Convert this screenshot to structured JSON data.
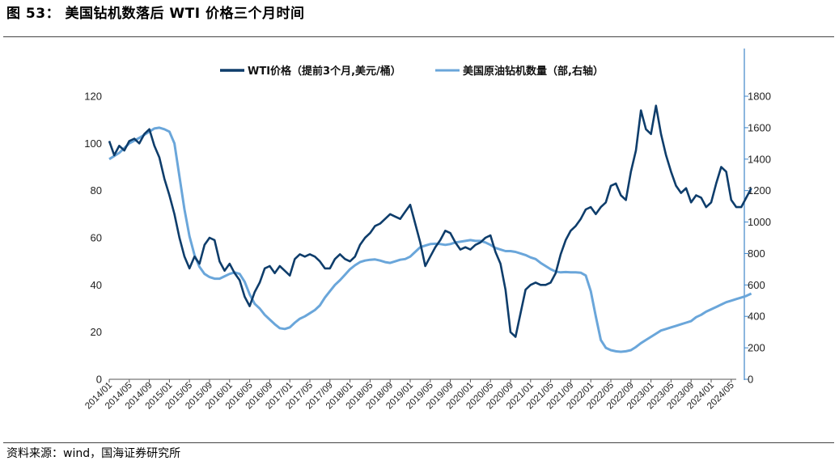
{
  "header": {
    "title": "图 53： 美国钻机数落后 WTI 价格三个月时间"
  },
  "footer": {
    "source": "资料来源：wind，国海证券研究所"
  },
  "colors": {
    "wti": "#0e3d6b",
    "rigs": "#6aa6da",
    "axis": "#3f86c8",
    "text": "#222222"
  },
  "chart_data": {
    "type": "line",
    "title": "",
    "legend_position": "top-center",
    "grid": false,
    "left_axis": {
      "min": 0,
      "max": 120,
      "ticks": [
        0,
        20,
        40,
        60,
        80,
        100,
        120
      ]
    },
    "right_axis": {
      "min": 0,
      "max": 1800,
      "ticks": [
        0,
        200,
        400,
        600,
        800,
        1000,
        1200,
        1400,
        1600,
        1800
      ]
    },
    "x_range": [
      "2014/01",
      "2024/06"
    ],
    "x_tick_labels": [
      "2014/01",
      "2014/05",
      "2014/09",
      "2015/01",
      "2015/05",
      "2015/09",
      "2016/01",
      "2016/05",
      "2016/09",
      "2017/01",
      "2017/05",
      "2017/09",
      "2018/01",
      "2018/05",
      "2018/09",
      "2019/01",
      "2019/05",
      "2019/09",
      "2020/01",
      "2020/05",
      "2020/09",
      "2021/01",
      "2021/05",
      "2021/09",
      "2022/01",
      "2022/05",
      "2022/09",
      "2023/01",
      "2023/05",
      "2023/09",
      "2024/01",
      "2024/05"
    ],
    "series": [
      {
        "name": "WTI价格（提前3个月,美元/桶）",
        "axis": "left",
        "points": [
          [
            "2014/01",
            101
          ],
          [
            "2014/02",
            95
          ],
          [
            "2014/03",
            99
          ],
          [
            "2014/04",
            97
          ],
          [
            "2014/05",
            101
          ],
          [
            "2014/06",
            102
          ],
          [
            "2014/07",
            100
          ],
          [
            "2014/08",
            104
          ],
          [
            "2014/09",
            106
          ],
          [
            "2014/10",
            99
          ],
          [
            "2014/11",
            94
          ],
          [
            "2014/12",
            85
          ],
          [
            "2015/01",
            78
          ],
          [
            "2015/02",
            70
          ],
          [
            "2015/03",
            60
          ],
          [
            "2015/04",
            52
          ],
          [
            "2015/05",
            47
          ],
          [
            "2015/06",
            52
          ],
          [
            "2015/07",
            49
          ],
          [
            "2015/08",
            57
          ],
          [
            "2015/09",
            60
          ],
          [
            "2015/10",
            59
          ],
          [
            "2015/11",
            50
          ],
          [
            "2015/12",
            46
          ],
          [
            "2016/01",
            49
          ],
          [
            "2016/02",
            45
          ],
          [
            "2016/03",
            42
          ],
          [
            "2016/04",
            35
          ],
          [
            "2016/05",
            31
          ],
          [
            "2016/06",
            37
          ],
          [
            "2016/07",
            41
          ],
          [
            "2016/08",
            47
          ],
          [
            "2016/09",
            48
          ],
          [
            "2016/10",
            45
          ],
          [
            "2016/11",
            48
          ],
          [
            "2016/12",
            46
          ],
          [
            "2017/01",
            44
          ],
          [
            "2017/02",
            51
          ],
          [
            "2017/03",
            53
          ],
          [
            "2017/04",
            52
          ],
          [
            "2017/05",
            53
          ],
          [
            "2017/06",
            52
          ],
          [
            "2017/07",
            50
          ],
          [
            "2017/08",
            47
          ],
          [
            "2017/09",
            47
          ],
          [
            "2017/10",
            51
          ],
          [
            "2017/11",
            53
          ],
          [
            "2017/12",
            51
          ],
          [
            "2018/01",
            50
          ],
          [
            "2018/02",
            52
          ],
          [
            "2018/03",
            57
          ],
          [
            "2018/04",
            60
          ],
          [
            "2018/05",
            62
          ],
          [
            "2018/06",
            65
          ],
          [
            "2018/07",
            66
          ],
          [
            "2018/08",
            68
          ],
          [
            "2018/09",
            70
          ],
          [
            "2018/10",
            69
          ],
          [
            "2018/11",
            68
          ],
          [
            "2018/12",
            71
          ],
          [
            "2019/01",
            74
          ],
          [
            "2019/02",
            66
          ],
          [
            "2019/03",
            58
          ],
          [
            "2019/04",
            48
          ],
          [
            "2019/05",
            52
          ],
          [
            "2019/06",
            56
          ],
          [
            "2019/07",
            59
          ],
          [
            "2019/08",
            63
          ],
          [
            "2019/09",
            62
          ],
          [
            "2019/10",
            58
          ],
          [
            "2019/11",
            55
          ],
          [
            "2019/12",
            56
          ],
          [
            "2020/01",
            55
          ],
          [
            "2020/02",
            57
          ],
          [
            "2020/03",
            58
          ],
          [
            "2020/04",
            60
          ],
          [
            "2020/05",
            61
          ],
          [
            "2020/06",
            54
          ],
          [
            "2020/07",
            49
          ],
          [
            "2020/08",
            38
          ],
          [
            "2020/09",
            20
          ],
          [
            "2020/10",
            18
          ],
          [
            "2020/11",
            28
          ],
          [
            "2020/12",
            38
          ],
          [
            "2021/01",
            40
          ],
          [
            "2021/02",
            41
          ],
          [
            "2021/03",
            40
          ],
          [
            "2021/04",
            40
          ],
          [
            "2021/05",
            41
          ],
          [
            "2021/06",
            45
          ],
          [
            "2021/07",
            53
          ],
          [
            "2021/08",
            59
          ],
          [
            "2021/09",
            63
          ],
          [
            "2021/10",
            65
          ],
          [
            "2021/11",
            68
          ],
          [
            "2021/12",
            72
          ],
          [
            "2022/01",
            73
          ],
          [
            "2022/02",
            70
          ],
          [
            "2022/03",
            73
          ],
          [
            "2022/04",
            75
          ],
          [
            "2022/05",
            82
          ],
          [
            "2022/06",
            83
          ],
          [
            "2022/07",
            78
          ],
          [
            "2022/08",
            76
          ],
          [
            "2022/09",
            88
          ],
          [
            "2022/10",
            97
          ],
          [
            "2022/11",
            114
          ],
          [
            "2022/12",
            106
          ],
          [
            "2023/01",
            104
          ],
          [
            "2023/02",
            116
          ],
          [
            "2023/03",
            104
          ],
          [
            "2023/04",
            95
          ],
          [
            "2023/05",
            88
          ],
          [
            "2023/06",
            82
          ],
          [
            "2023/07",
            79
          ],
          [
            "2023/08",
            81
          ],
          [
            "2023/09",
            75
          ],
          [
            "2023/10",
            78
          ],
          [
            "2023/11",
            77
          ],
          [
            "2023/12",
            73
          ],
          [
            "2024/01",
            75
          ],
          [
            "2024/02",
            83
          ],
          [
            "2024/03",
            90
          ],
          [
            "2024/04",
            88
          ],
          [
            "2024/05",
            76
          ],
          [
            "2024/06",
            73
          ],
          [
            "2024/07",
            73
          ],
          [
            "2024/08",
            77
          ],
          [
            "2024/09",
            81
          ]
        ]
      },
      {
        "name": "美国原油钻机数量（部,右轴）",
        "axis": "right",
        "points": [
          [
            "2014/01",
            1400
          ],
          [
            "2014/03",
            1440
          ],
          [
            "2014/05",
            1500
          ],
          [
            "2014/07",
            1535
          ],
          [
            "2014/09",
            1575
          ],
          [
            "2014/10",
            1595
          ],
          [
            "2014/11",
            1600
          ],
          [
            "2014/12",
            1590
          ],
          [
            "2015/01",
            1575
          ],
          [
            "2015/02",
            1500
          ],
          [
            "2015/03",
            1290
          ],
          [
            "2015/04",
            1080
          ],
          [
            "2015/05",
            910
          ],
          [
            "2015/06",
            790
          ],
          [
            "2015/07",
            715
          ],
          [
            "2015/08",
            670
          ],
          [
            "2015/09",
            650
          ],
          [
            "2015/10",
            640
          ],
          [
            "2015/11",
            640
          ],
          [
            "2015/12",
            655
          ],
          [
            "2016/01",
            670
          ],
          [
            "2016/02",
            680
          ],
          [
            "2016/03",
            670
          ],
          [
            "2016/04",
            620
          ],
          [
            "2016/05",
            540
          ],
          [
            "2016/06",
            480
          ],
          [
            "2016/07",
            450
          ],
          [
            "2016/08",
            410
          ],
          [
            "2016/09",
            380
          ],
          [
            "2016/10",
            350
          ],
          [
            "2016/11",
            325
          ],
          [
            "2016/12",
            320
          ],
          [
            "2017/01",
            330
          ],
          [
            "2017/02",
            360
          ],
          [
            "2017/03",
            385
          ],
          [
            "2017/04",
            400
          ],
          [
            "2017/05",
            420
          ],
          [
            "2017/06",
            440
          ],
          [
            "2017/07",
            470
          ],
          [
            "2017/08",
            520
          ],
          [
            "2017/09",
            560
          ],
          [
            "2017/10",
            600
          ],
          [
            "2017/11",
            630
          ],
          [
            "2017/12",
            665
          ],
          [
            "2018/01",
            700
          ],
          [
            "2018/02",
            725
          ],
          [
            "2018/03",
            745
          ],
          [
            "2018/04",
            755
          ],
          [
            "2018/05",
            760
          ],
          [
            "2018/06",
            762
          ],
          [
            "2018/07",
            755
          ],
          [
            "2018/08",
            745
          ],
          [
            "2018/09",
            740
          ],
          [
            "2018/10",
            750
          ],
          [
            "2018/11",
            760
          ],
          [
            "2018/12",
            765
          ],
          [
            "2019/01",
            780
          ],
          [
            "2019/02",
            810
          ],
          [
            "2019/03",
            840
          ],
          [
            "2019/04",
            850
          ],
          [
            "2019/05",
            860
          ],
          [
            "2019/06",
            862
          ],
          [
            "2019/07",
            860
          ],
          [
            "2019/08",
            855
          ],
          [
            "2019/09",
            860
          ],
          [
            "2019/10",
            870
          ],
          [
            "2019/11",
            875
          ],
          [
            "2019/12",
            880
          ],
          [
            "2020/01",
            885
          ],
          [
            "2020/02",
            880
          ],
          [
            "2020/03",
            880
          ],
          [
            "2020/04",
            870
          ],
          [
            "2020/05",
            855
          ],
          [
            "2020/06",
            835
          ],
          [
            "2020/07",
            825
          ],
          [
            "2020/08",
            815
          ],
          [
            "2020/09",
            815
          ],
          [
            "2020/10",
            810
          ],
          [
            "2020/11",
            800
          ],
          [
            "2020/12",
            790
          ],
          [
            "2021/01",
            775
          ],
          [
            "2021/02",
            765
          ],
          [
            "2021/03",
            740
          ],
          [
            "2021/04",
            720
          ],
          [
            "2021/05",
            700
          ],
          [
            "2021/06",
            685
          ],
          [
            "2021/07",
            680
          ],
          [
            "2021/08",
            682
          ],
          [
            "2021/09",
            680
          ],
          [
            "2021/10",
            680
          ],
          [
            "2021/11",
            678
          ],
          [
            "2021/12",
            660
          ],
          [
            "2022/01",
            560
          ],
          [
            "2022/02",
            400
          ],
          [
            "2022/03",
            250
          ],
          [
            "2022/04",
            200
          ],
          [
            "2022/05",
            185
          ],
          [
            "2022/06",
            178
          ],
          [
            "2022/07",
            175
          ],
          [
            "2022/08",
            178
          ],
          [
            "2022/09",
            185
          ],
          [
            "2022/10",
            205
          ],
          [
            "2022/11",
            230
          ],
          [
            "2022/12",
            250
          ],
          [
            "2023/01",
            270
          ],
          [
            "2023/02",
            290
          ],
          [
            "2023/03",
            310
          ],
          [
            "2023/04",
            320
          ],
          [
            "2023/05",
            330
          ],
          [
            "2023/06",
            340
          ],
          [
            "2023/07",
            350
          ],
          [
            "2023/08",
            360
          ],
          [
            "2023/09",
            370
          ],
          [
            "2023/10",
            395
          ],
          [
            "2023/11",
            410
          ],
          [
            "2023/12",
            430
          ],
          [
            "2024/01",
            445
          ],
          [
            "2024/02",
            460
          ],
          [
            "2024/03",
            475
          ],
          [
            "2024/04",
            490
          ],
          [
            "2024/05",
            500
          ],
          [
            "2024/06",
            510
          ],
          [
            "2024/07",
            520
          ],
          [
            "2024/08",
            530
          ],
          [
            "2024/09",
            545
          ]
        ]
      }
    ]
  }
}
